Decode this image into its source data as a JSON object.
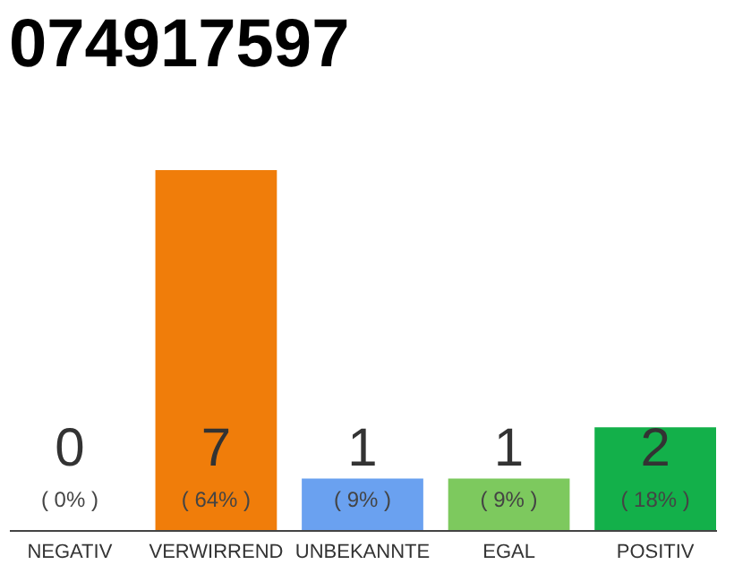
{
  "chart_data": {
    "type": "bar",
    "title": "074917597",
    "categories": [
      "NEGATIV",
      "VERWIRREND",
      "UNBEKANNTE",
      "EGAL",
      "POSITIV"
    ],
    "values": [
      0,
      7,
      1,
      1,
      2
    ],
    "colors": [
      "#e0e0e0",
      "#f07d0a",
      "#6aa1f0",
      "#7dc95e",
      "#13b04a"
    ],
    "data_labels": true,
    "annotations": [
      "( 0% )",
      "( 64% )",
      "( 9% )",
      "( 9% )",
      "( 18% )"
    ],
    "grid": false
  }
}
